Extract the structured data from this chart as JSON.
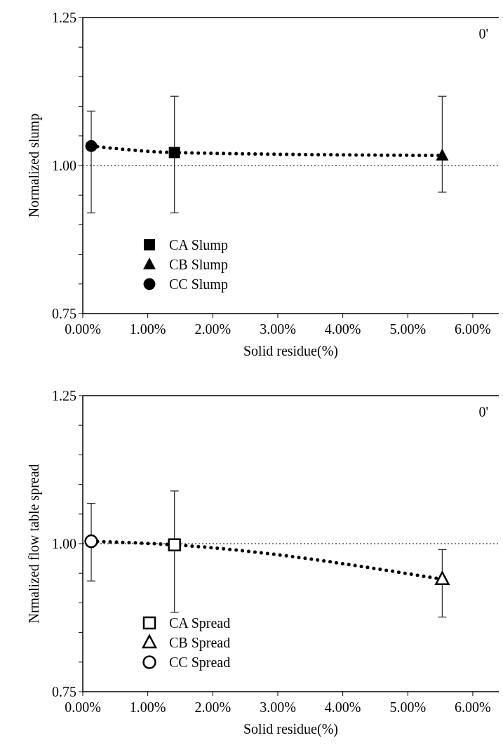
{
  "chart_data": [
    {
      "type": "scatter",
      "xlabel": "Solid residue(%)",
      "ylabel": "Normalized slump",
      "annotations": [
        "0'"
      ],
      "xlim": [
        0,
        6.4
      ],
      "xticks": [
        {
          "value": 0,
          "label": "0.00%"
        },
        {
          "value": 1,
          "label": "1.00%"
        },
        {
          "value": 2,
          "label": "2.00%"
        },
        {
          "value": 3,
          "label": "3.00%"
        },
        {
          "value": 4,
          "label": "4.00%"
        },
        {
          "value": 5,
          "label": "5.00%"
        },
        {
          "value": 6,
          "label": "6.00%"
        }
      ],
      "ylim": [
        0.75,
        1.25
      ],
      "yticks": [
        {
          "value": 0.75,
          "label": "0.75"
        },
        {
          "value": 0.8,
          "label": null
        },
        {
          "value": 0.85,
          "label": null
        },
        {
          "value": 0.9,
          "label": null
        },
        {
          "value": 0.95,
          "label": null
        },
        {
          "value": 1,
          "label": "1.00"
        },
        {
          "value": 1.05,
          "label": null
        },
        {
          "value": 1.1,
          "label": null
        },
        {
          "value": 1.15,
          "label": null
        },
        {
          "value": 1.2,
          "label": null
        },
        {
          "value": 1.25,
          "label": "1.25"
        }
      ],
      "ref_lines": [
        {
          "axis": "y",
          "value": 1,
          "color": "#000000",
          "line_style": "dotted"
        }
      ],
      "legend": "bottom left",
      "series": [
        {
          "type": "line",
          "x": [
            0.13,
            1.41,
            5.53
          ],
          "values": [
            1.033,
            1.022,
            1.017
          ],
          "color": "#000000",
          "line_style": "dotted",
          "marker": "none"
        },
        {
          "name": "CA Slump",
          "x": [
            1.41
          ],
          "values": [
            1.022
          ],
          "errors": [
            [
              0.92,
              1.117
            ]
          ],
          "color": "#000000",
          "marker": "square"
        },
        {
          "name": "CB Slump",
          "x": [
            5.53
          ],
          "values": [
            1.017
          ],
          "errors": [
            [
              0.955,
              1.117
            ]
          ],
          "color": "#000000",
          "marker": "triangle"
        },
        {
          "name": "CC Slump",
          "x": [
            0.13
          ],
          "values": [
            1.033
          ],
          "errors": [
            [
              0.92,
              1.092
            ]
          ],
          "color": "#000000",
          "marker": "circle"
        }
      ]
    },
    {
      "type": "scatter",
      "xlabel": "Solid residue(%)",
      "ylabel": "Nrmalized flow table spread",
      "annotations": [
        "0'"
      ],
      "xlim": [
        0,
        6.4
      ],
      "xticks": [
        {
          "value": 0,
          "label": "0.00%"
        },
        {
          "value": 1,
          "label": "1.00%"
        },
        {
          "value": 2,
          "label": "2.00%"
        },
        {
          "value": 3,
          "label": "3.00%"
        },
        {
          "value": 4,
          "label": "4.00%"
        },
        {
          "value": 5,
          "label": "5.00%"
        },
        {
          "value": 6,
          "label": "6.00%"
        }
      ],
      "ylim": [
        0.75,
        1.25
      ],
      "yticks": [
        {
          "value": 0.75,
          "label": "0.75"
        },
        {
          "value": 0.8,
          "label": null
        },
        {
          "value": 0.85,
          "label": null
        },
        {
          "value": 0.9,
          "label": null
        },
        {
          "value": 0.95,
          "label": null
        },
        {
          "value": 1,
          "label": "1.00"
        },
        {
          "value": 1.05,
          "label": null
        },
        {
          "value": 1.1,
          "label": null
        },
        {
          "value": 1.15,
          "label": null
        },
        {
          "value": 1.2,
          "label": null
        },
        {
          "value": 1.25,
          "label": "1.25"
        }
      ],
      "ref_lines": [
        {
          "axis": "y",
          "value": 1,
          "color": "#000000",
          "line_style": "dotted"
        }
      ],
      "legend": "bottom left",
      "series": [
        {
          "type": "line",
          "x": [
            0.13,
            1.41,
            5.53
          ],
          "values": [
            1.004,
            0.998,
            0.94
          ],
          "color": "#000000",
          "line_style": "dotted",
          "marker": "none"
        },
        {
          "name": "CA Spread",
          "x": [
            1.41
          ],
          "values": [
            0.998
          ],
          "errors": [
            [
              0.884,
              1.089
            ]
          ],
          "color": "#000000",
          "marker": "square"
        },
        {
          "name": "CB Spread",
          "x": [
            5.53
          ],
          "values": [
            0.94
          ],
          "errors": [
            [
              0.876,
              0.99
            ]
          ],
          "color": "#000000",
          "marker": "triangle"
        },
        {
          "name": "CC Spread",
          "x": [
            0.13
          ],
          "values": [
            1.004
          ],
          "errors": [
            [
              0.937,
              1.068
            ]
          ],
          "color": "#000000",
          "marker": "circle"
        }
      ]
    }
  ]
}
